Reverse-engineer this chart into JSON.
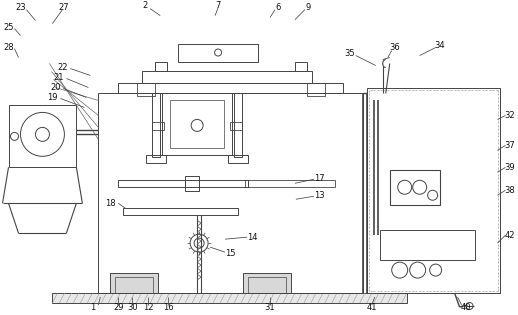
{
  "bg": "#ffffff",
  "lc": "#444444",
  "lc2": "#888888",
  "lw": 0.7,
  "fs": 6.0,
  "hatch_color": "#aaaaaa"
}
